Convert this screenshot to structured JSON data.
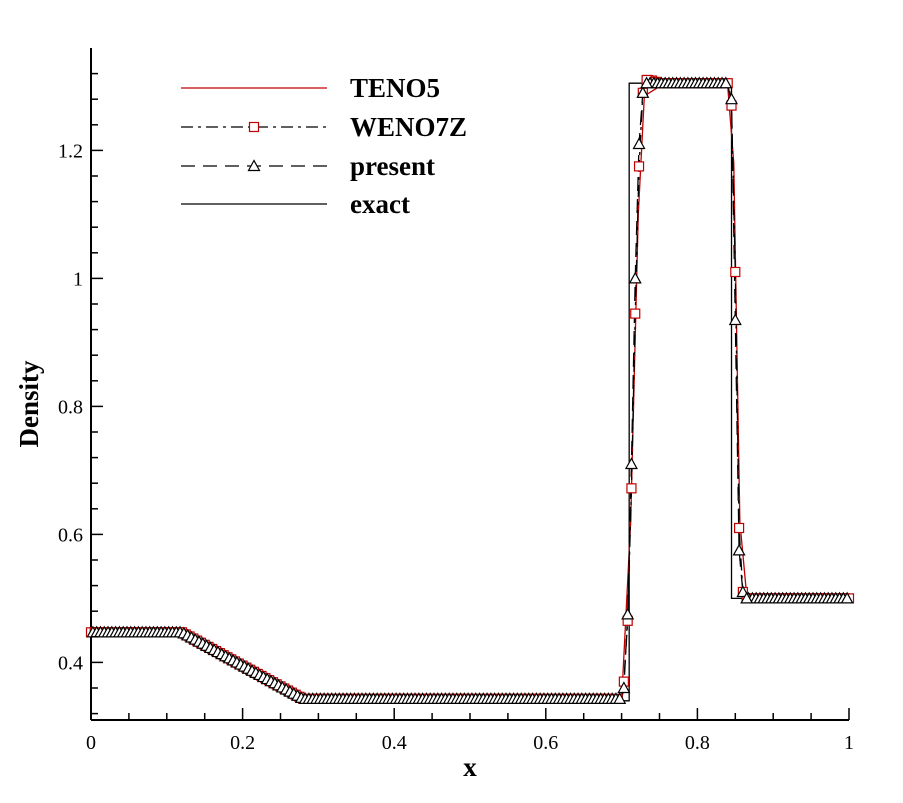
{
  "chart_data": {
    "type": "line",
    "xlabel": "x",
    "ylabel": "Density",
    "xlim": [
      0,
      1
    ],
    "ylim": [
      0.31,
      1.36
    ],
    "xticks": [
      0,
      0.2,
      0.4,
      0.6,
      0.8,
      1
    ],
    "xtick_labels": [
      "0",
      "0.2",
      "0.4",
      "0.6",
      "0.8",
      "1"
    ],
    "yticks": [
      0.4,
      0.6,
      0.8,
      1.0,
      1.2
    ],
    "ytick_labels": [
      "0.4",
      "0.6",
      "0.8",
      "1",
      "1.2"
    ],
    "legend_position": "top-left",
    "series": [
      {
        "name": "TENO5",
        "color": "#c00000",
        "style": "solid",
        "marker": "none",
        "x": [
          0,
          0.12,
          0.28,
          0.7,
          0.712,
          0.722,
          0.73,
          0.75,
          0.84,
          0.848,
          0.856,
          0.865,
          1.0
        ],
        "y": [
          0.445,
          0.445,
          0.34,
          0.34,
          0.62,
          1.1,
          1.285,
          1.3,
          1.3,
          1.18,
          0.62,
          0.505,
          0.5
        ]
      },
      {
        "name": "WENO7Z",
        "color": "#000000",
        "marker_color": "#c00000",
        "style": "dashdot",
        "marker": "square",
        "x": [
          0,
          0.12,
          0.28,
          0.7,
          0.703,
          0.708,
          0.713,
          0.718,
          0.723,
          0.728,
          0.733,
          0.738,
          0.75,
          0.84,
          0.845,
          0.85,
          0.855,
          0.86,
          0.865,
          1.0
        ],
        "y": [
          0.447,
          0.447,
          0.343,
          0.343,
          0.37,
          0.465,
          0.672,
          0.945,
          1.175,
          1.29,
          1.31,
          1.31,
          1.305,
          1.305,
          1.27,
          1.01,
          0.61,
          0.51,
          0.5,
          0.5
        ]
      },
      {
        "name": "present",
        "color": "#000000",
        "marker_color": "#000000",
        "style": "dashed",
        "marker": "triangle",
        "x": [
          0,
          0.12,
          0.28,
          0.7,
          0.703,
          0.708,
          0.713,
          0.718,
          0.723,
          0.728,
          0.733,
          0.75,
          0.84,
          0.845,
          0.85,
          0.855,
          0.86,
          0.865,
          1.0
        ],
        "y": [
          0.447,
          0.447,
          0.343,
          0.343,
          0.36,
          0.475,
          0.71,
          1.0,
          1.21,
          1.29,
          1.305,
          1.305,
          1.305,
          1.28,
          0.935,
          0.575,
          0.51,
          0.5,
          0.5
        ]
      },
      {
        "name": "exact",
        "color": "#000000",
        "style": "solid",
        "marker": "none",
        "x": [
          0,
          0.115,
          0.288,
          0.71,
          0.71,
          0.845,
          0.845,
          1.0
        ],
        "y": [
          0.445,
          0.445,
          0.34,
          0.34,
          1.305,
          1.305,
          0.5,
          0.5
        ]
      }
    ]
  }
}
